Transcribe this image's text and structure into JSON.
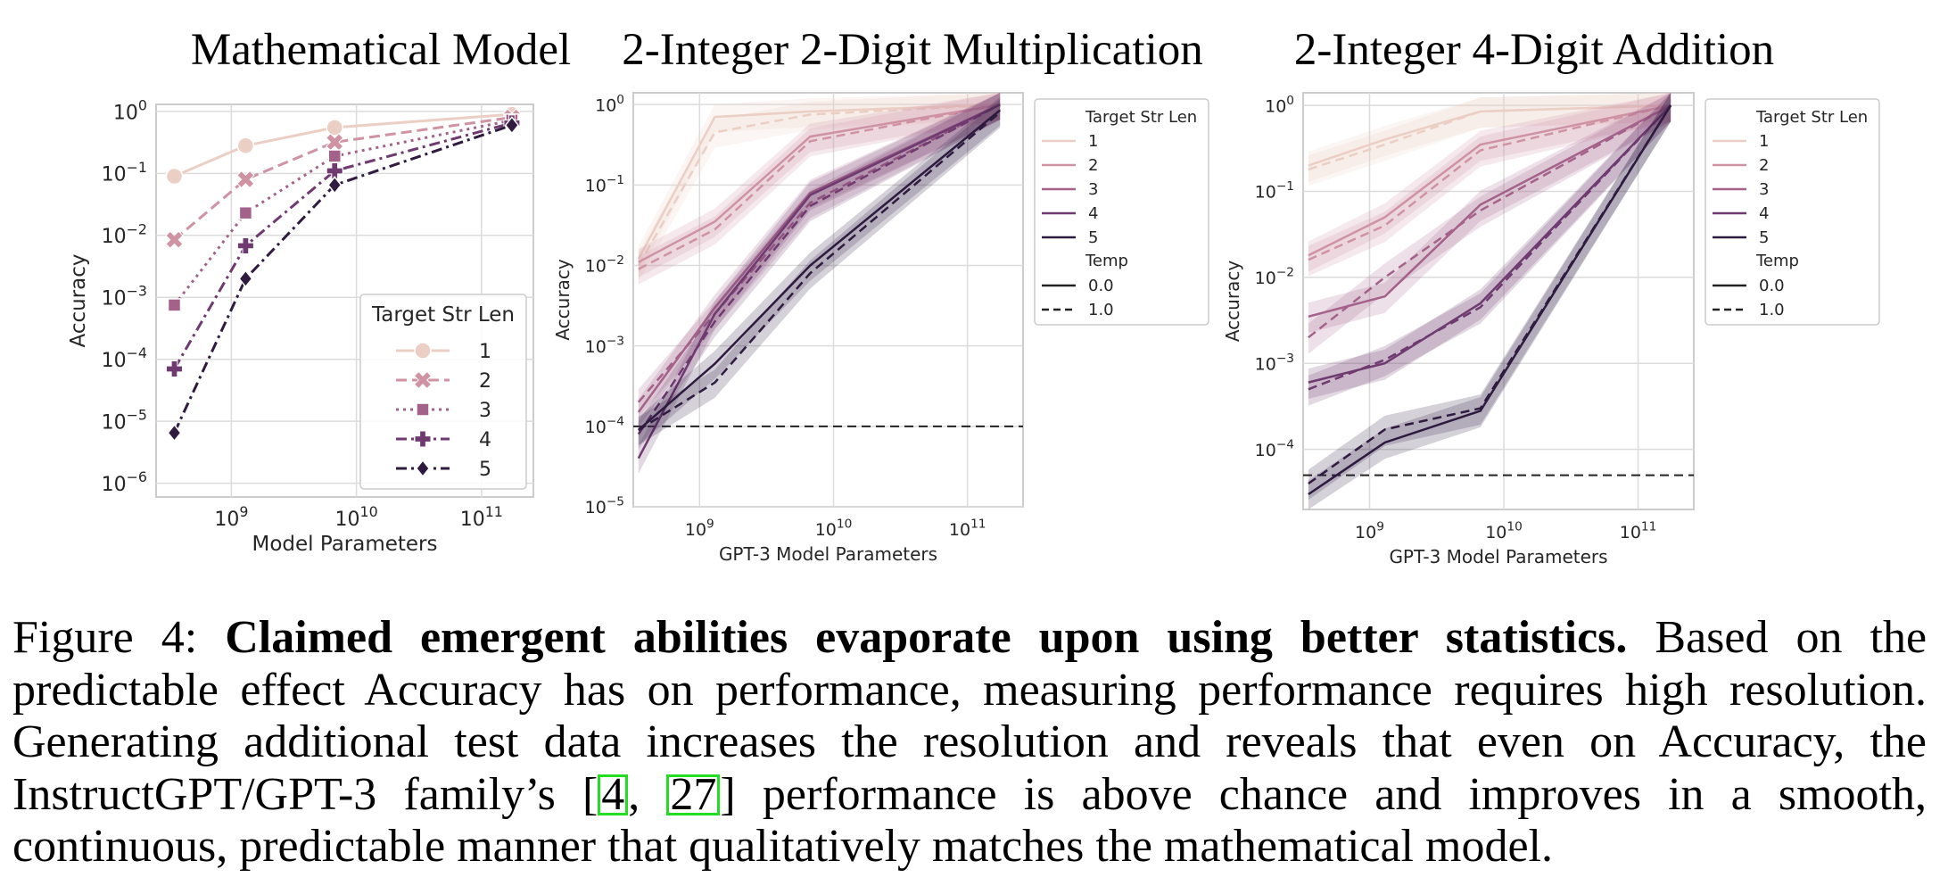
{
  "panels": [
    {
      "id": "math",
      "title": "Mathematical Model",
      "xlabel": "Model Parameters",
      "ylabel": "Accuracy",
      "x_ticks": [
        {
          "v": 1000000000.0,
          "base": "10",
          "exp": "9"
        },
        {
          "v": 10000000000.0,
          "base": "10",
          "exp": "10"
        },
        {
          "v": 100000000000.0,
          "base": "10",
          "exp": "11"
        }
      ],
      "y_ticks": [
        {
          "v": 1.0,
          "base": "10",
          "exp": "0"
        },
        {
          "v": 0.1,
          "base": "10",
          "exp": "−1"
        },
        {
          "v": 0.01,
          "base": "10",
          "exp": "−2"
        },
        {
          "v": 0.001,
          "base": "10",
          "exp": "−3"
        },
        {
          "v": 0.0001,
          "base": "10",
          "exp": "−4"
        },
        {
          "v": 1e-05,
          "base": "10",
          "exp": "−5"
        },
        {
          "v": 1e-06,
          "base": "10",
          "exp": "−6"
        }
      ],
      "legend_title": "Target Str Len",
      "legend_entries": [
        "1",
        "2",
        "3",
        "4",
        "5"
      ]
    },
    {
      "id": "mult",
      "title": "2-Integer 2-Digit Multiplication",
      "xlabel": "GPT-3 Model Parameters",
      "ylabel": "Accuracy",
      "x_ticks": [
        {
          "v": 1000000000.0,
          "base": "10",
          "exp": "9"
        },
        {
          "v": 10000000000.0,
          "base": "10",
          "exp": "10"
        },
        {
          "v": 100000000000.0,
          "base": "10",
          "exp": "11"
        }
      ],
      "y_ticks": [
        {
          "v": 1.0,
          "base": "10",
          "exp": "0"
        },
        {
          "v": 0.1,
          "base": "10",
          "exp": "−1"
        },
        {
          "v": 0.01,
          "base": "10",
          "exp": "−2"
        },
        {
          "v": 0.001,
          "base": "10",
          "exp": "−3"
        },
        {
          "v": 0.0001,
          "base": "10",
          "exp": "−4"
        },
        {
          "v": 1e-05,
          "base": "10",
          "exp": "−5"
        }
      ],
      "legend_title": "Target Str Len",
      "legend_entries": [
        "1",
        "2",
        "3",
        "4",
        "5"
      ],
      "legend_title2": "Temp",
      "legend_entries2": [
        "0.0",
        "1.0"
      ]
    },
    {
      "id": "add",
      "title": "2-Integer 4-Digit Addition",
      "xlabel": "GPT-3 Model Parameters",
      "ylabel": "Accuracy",
      "x_ticks": [
        {
          "v": 1000000000.0,
          "base": "10",
          "exp": "9"
        },
        {
          "v": 10000000000.0,
          "base": "10",
          "exp": "10"
        },
        {
          "v": 100000000000.0,
          "base": "10",
          "exp": "11"
        }
      ],
      "y_ticks": [
        {
          "v": 1.0,
          "base": "10",
          "exp": "0"
        },
        {
          "v": 0.1,
          "base": "10",
          "exp": "−1"
        },
        {
          "v": 0.01,
          "base": "10",
          "exp": "−2"
        },
        {
          "v": 0.001,
          "base": "10",
          "exp": "−3"
        },
        {
          "v": 0.0001,
          "base": "10",
          "exp": "−4"
        }
      ],
      "legend_title": "Target Str Len",
      "legend_entries": [
        "1",
        "2",
        "3",
        "4",
        "5"
      ],
      "legend_title2": "Temp",
      "legend_entries2": [
        "0.0",
        "1.0"
      ]
    }
  ],
  "colors": {
    "len1": "#ebcfc5",
    "len2": "#cf93a4",
    "len3": "#a4628a",
    "len4": "#6e3a70",
    "len5": "#2e1b3f",
    "grid": "#dcdcdc",
    "spine": "#cccccc",
    "chance_line": "#222222",
    "citation_box": "#22dd22"
  },
  "chart_data": [
    {
      "type": "line",
      "title": "Mathematical Model",
      "xlabel": "Model Parameters",
      "ylabel": "Accuracy",
      "x_scale": "log",
      "y_scale": "log",
      "xlim": [
        250000000.0,
        260000000000.0
      ],
      "ylim": [
        6e-07,
        1.3
      ],
      "grid": true,
      "legend_placement": "lower-right",
      "legend_title": "Target Str Len",
      "x": [
        350000000.0,
        1300000000.0,
        6700000000.0,
        175000000000.0
      ],
      "series": [
        {
          "name": "1",
          "style": "solid",
          "marker": "circle",
          "values": [
            0.09,
            0.28,
            0.55,
            0.9
          ]
        },
        {
          "name": "2",
          "style": "dashed",
          "marker": "x",
          "values": [
            0.0085,
            0.08,
            0.32,
            0.8
          ]
        },
        {
          "name": "3",
          "style": "dotted",
          "marker": "square",
          "values": [
            0.00075,
            0.023,
            0.19,
            0.72
          ]
        },
        {
          "name": "4",
          "style": "dashdot",
          "marker": "plus",
          "values": [
            7e-05,
            0.0068,
            0.11,
            0.65
          ]
        },
        {
          "name": "5",
          "style": "dashdot",
          "marker": "diamond",
          "values": [
            6.5e-06,
            0.002,
            0.065,
            0.6
          ]
        }
      ]
    },
    {
      "type": "line",
      "title": "2-Integer 2-Digit Multiplication",
      "xlabel": "GPT-3 Model Parameters",
      "ylabel": "Accuracy",
      "x_scale": "log",
      "y_scale": "log",
      "xlim": [
        320000000.0,
        260000000000.0
      ],
      "ylim": [
        1e-05,
        1.4
      ],
      "grid": true,
      "legend_placement": "outside-right",
      "legend_title": "Target Str Len",
      "legend_title2": "Temp",
      "chance_level": 0.0001,
      "x": [
        350000000.0,
        1300000000.0,
        6700000000.0,
        175000000000.0
      ],
      "series": [
        {
          "name": "1",
          "temp": "0.0",
          "values": [
            0.012,
            0.7,
            0.82,
            1.0
          ]
        },
        {
          "name": "1",
          "temp": "1.0",
          "values": [
            0.01,
            0.45,
            0.75,
            1.0
          ]
        },
        {
          "name": "2",
          "temp": "0.0",
          "values": [
            0.011,
            0.035,
            0.4,
            1.0
          ]
        },
        {
          "name": "2",
          "temp": "1.0",
          "values": [
            0.009,
            0.028,
            0.35,
            1.0
          ]
        },
        {
          "name": "3",
          "temp": "0.0",
          "values": [
            0.00015,
            0.003,
            0.08,
            1.0
          ]
        },
        {
          "name": "3",
          "temp": "1.0",
          "values": [
            0.0002,
            0.0025,
            0.06,
            1.0
          ]
        },
        {
          "name": "4",
          "temp": "0.0",
          "values": [
            4e-05,
            0.0025,
            0.075,
            1.0
          ]
        },
        {
          "name": "4",
          "temp": "1.0",
          "values": [
            8e-05,
            0.002,
            0.055,
            1.0
          ]
        },
        {
          "name": "5",
          "temp": "0.0",
          "values": [
            9e-05,
            0.0006,
            0.01,
            0.85
          ]
        },
        {
          "name": "5",
          "temp": "1.0",
          "values": [
            9e-05,
            0.00035,
            0.008,
            0.8
          ]
        }
      ]
    },
    {
      "type": "line",
      "title": "2-Integer 4-Digit Addition",
      "xlabel": "GPT-3 Model Parameters",
      "ylabel": "Accuracy",
      "x_scale": "log",
      "y_scale": "log",
      "xlim": [
        320000000.0,
        260000000000.0
      ],
      "ylim": [
        2e-05,
        1.4
      ],
      "grid": true,
      "legend_placement": "outside-right",
      "legend_title": "Target Str Len",
      "legend_title2": "Temp",
      "chance_level": 5e-05,
      "x": [
        350000000.0,
        1300000000.0,
        6700000000.0,
        175000000000.0
      ],
      "series": [
        {
          "name": "1",
          "temp": "0.0",
          "values": [
            0.2,
            0.4,
            0.85,
            1.0
          ]
        },
        {
          "name": "1",
          "temp": "1.0",
          "values": [
            0.18,
            0.35,
            0.85,
            1.0
          ]
        },
        {
          "name": "2",
          "temp": "0.0",
          "values": [
            0.018,
            0.05,
            0.35,
            1.0
          ]
        },
        {
          "name": "2",
          "temp": "1.0",
          "values": [
            0.016,
            0.04,
            0.3,
            1.0
          ]
        },
        {
          "name": "3",
          "temp": "0.0",
          "values": [
            0.0035,
            0.006,
            0.07,
            1.0
          ]
        },
        {
          "name": "3",
          "temp": "1.0",
          "values": [
            0.002,
            0.01,
            0.06,
            1.0
          ]
        },
        {
          "name": "4",
          "temp": "0.0",
          "values": [
            0.0006,
            0.001,
            0.005,
            1.0
          ]
        },
        {
          "name": "4",
          "temp": "1.0",
          "values": [
            0.0005,
            0.0011,
            0.0045,
            1.0
          ]
        },
        {
          "name": "5",
          "temp": "0.0",
          "values": [
            3e-05,
            0.00012,
            0.00028,
            1.0
          ]
        },
        {
          "name": "5",
          "temp": "1.0",
          "values": [
            4e-05,
            0.00017,
            0.0003,
            1.0
          ]
        }
      ]
    }
  ],
  "caption": {
    "label": "Figure 4:",
    "bold_title": "Claimed emergent abilities evaporate upon using better statistics.",
    "text_before_cites": "Based on the predictable effect Accuracy has on performance, measuring performance requires high resolution. Generating additional test data increases the resolution and reveals that even on Accuracy, the InstructGPT/GPT-3 family’s [",
    "cite1": "4",
    "separator": ", ",
    "cite2": "27",
    "text_after_cites": "] performance is above chance and improves in a smooth, continuous, predictable manner that qualitatively matches the mathematical model."
  }
}
